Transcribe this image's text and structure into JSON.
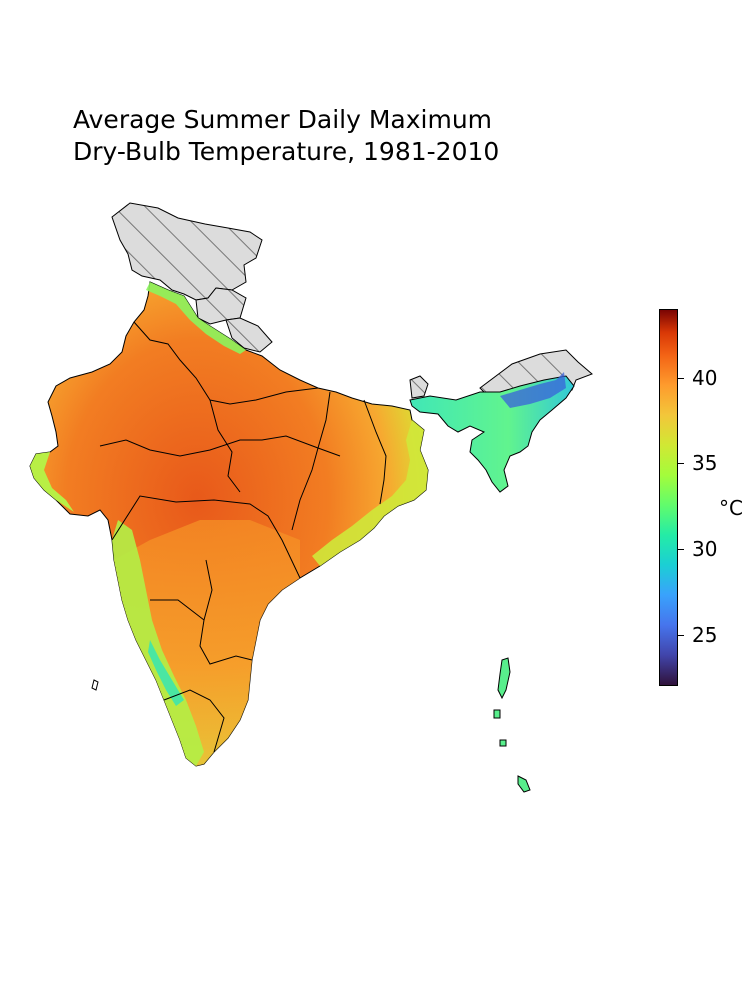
{
  "title": {
    "line1": "Average Summer Daily Maximum",
    "line2": "Dry-Bulb Temperature, 1981-2010"
  },
  "colorbar": {
    "unit": "°C",
    "range": [
      22,
      44
    ],
    "ticks": [
      {
        "label": "25",
        "value": 25
      },
      {
        "label": "30",
        "value": 30
      },
      {
        "label": "35",
        "value": 35
      },
      {
        "label": "40",
        "value": 40
      }
    ],
    "colormap": "turbo"
  },
  "map": {
    "region": "India",
    "hatched_no_data_regions": [
      "Jammu and Kashmir",
      "Himachal Pradesh",
      "Arunachal Pradesh"
    ],
    "hot_core_color": "#f07a1f",
    "mild_color": "#c8ee3a",
    "cool_color": "#3ce7b0",
    "cold_color": "#3a61d9",
    "nodata_fill": "#dcdcdc"
  }
}
